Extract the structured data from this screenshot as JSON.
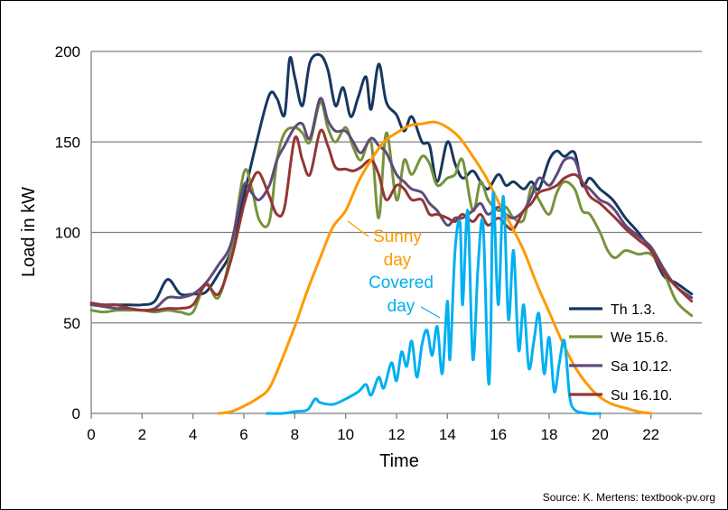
{
  "chart_data": {
    "type": "line",
    "xlabel": "Time",
    "ylabel": "Load in kW",
    "xlim": [
      0,
      24
    ],
    "ylim": [
      0,
      200
    ],
    "xticks": [
      "0",
      "2",
      "4",
      "6",
      "8",
      "10",
      "12",
      "14",
      "16",
      "18",
      "20",
      "22"
    ],
    "yticks": [
      "0",
      "50",
      "100",
      "150",
      "200"
    ],
    "grid": "horizontal",
    "legend_position": "right",
    "series": [
      {
        "name": "Th 1.3.",
        "color": "#17375e",
        "x": [
          0,
          0.5,
          1,
          1.5,
          2,
          2.5,
          3,
          3.5,
          4,
          4.5,
          5,
          5.5,
          6,
          6.5,
          7,
          7.3,
          7.6,
          7.8,
          8,
          8.3,
          8.6,
          9,
          9.3,
          9.6,
          9.9,
          10.2,
          10.5,
          10.8,
          11,
          11.3,
          11.6,
          12,
          12.3,
          12.6,
          13,
          13.3,
          13.6,
          14,
          14.3,
          14.6,
          15,
          15.3,
          15.6,
          16,
          16.3,
          16.6,
          17,
          17.3,
          17.6,
          18,
          18.3,
          18.6,
          19,
          19.3,
          19.6,
          20,
          20.5,
          21,
          21.5,
          22,
          22.5,
          23,
          23.6
        ],
        "y": [
          61,
          60,
          60,
          60,
          60,
          62,
          74,
          66,
          66,
          67,
          77,
          90,
          120,
          150,
          176,
          174,
          165,
          196,
          186,
          170,
          194,
          198,
          190,
          170,
          180,
          164,
          175,
          186,
          168,
          193,
          172,
          165,
          156,
          164,
          150,
          148,
          128,
          150,
          138,
          130,
          134,
          128,
          124,
          132,
          126,
          128,
          124,
          128,
          124,
          140,
          145,
          142,
          144,
          126,
          130,
          124,
          118,
          108,
          100,
          90,
          76,
          72,
          66
        ]
      },
      {
        "name": "We 15.6.",
        "color": "#77933c",
        "x": [
          0,
          0.5,
          1,
          1.5,
          2,
          2.5,
          3,
          3.5,
          4,
          4.5,
          5,
          5.5,
          6,
          6.3,
          6.6,
          7,
          7.3,
          7.6,
          8,
          8.3,
          8.6,
          9,
          9.3,
          9.6,
          10,
          10.3,
          10.6,
          11,
          11.3,
          11.6,
          12,
          12.3,
          12.6,
          13,
          13.3,
          13.6,
          14,
          14.3,
          14.6,
          15,
          15.3,
          15.6,
          16,
          16.3,
          16.6,
          17,
          17.3,
          17.6,
          18,
          18.3,
          18.6,
          19,
          19.3,
          19.6,
          20,
          20.3,
          20.6,
          21,
          21.5,
          22,
          22.5,
          23,
          23.6
        ],
        "y": [
          57,
          56,
          57,
          57,
          57,
          56,
          57,
          56,
          56,
          72,
          64,
          90,
          133,
          125,
          107,
          106,
          140,
          155,
          158,
          155,
          150,
          172,
          158,
          150,
          158,
          147,
          140,
          150,
          108,
          155,
          118,
          140,
          132,
          142,
          138,
          126,
          130,
          132,
          140,
          112,
          128,
          118,
          112,
          114,
          108,
          107,
          125,
          118,
          110,
          122,
          128,
          124,
          112,
          110,
          100,
          90,
          86,
          90,
          88,
          88,
          78,
          62,
          54
        ]
      },
      {
        "name": "Sa 10.12.",
        "color": "#604a7b",
        "x": [
          0,
          0.5,
          1,
          1.5,
          2,
          2.5,
          3,
          3.5,
          4,
          4.5,
          5,
          5.5,
          6,
          6.3,
          6.6,
          7,
          7.3,
          7.6,
          8,
          8.3,
          8.6,
          9,
          9.3,
          9.6,
          10,
          10.3,
          10.6,
          11,
          11.3,
          11.6,
          12,
          12.3,
          12.6,
          13,
          13.3,
          13.6,
          14,
          14.3,
          14.6,
          15,
          15.3,
          15.6,
          16,
          16.3,
          16.6,
          17,
          17.3,
          17.6,
          18,
          18.3,
          18.6,
          19,
          19.3,
          19.6,
          20,
          20.3,
          20.6,
          21,
          21.5,
          22,
          22.5,
          23,
          23.6
        ],
        "y": [
          60,
          59,
          58,
          58,
          57,
          58,
          64,
          64,
          66,
          72,
          82,
          94,
          126,
          122,
          118,
          126,
          140,
          148,
          158,
          160,
          152,
          174,
          162,
          156,
          156,
          150,
          144,
          152,
          148,
          144,
          132,
          128,
          124,
          122,
          116,
          112,
          104,
          108,
          108,
          112,
          116,
          110,
          114,
          110,
          108,
          112,
          120,
          130,
          126,
          132,
          140,
          140,
          128,
          124,
          118,
          116,
          112,
          104,
          98,
          92,
          80,
          70,
          64
        ]
      },
      {
        "name": "Su 16.10.",
        "color": "#943634",
        "x": [
          0,
          0.5,
          1,
          1.5,
          2,
          2.5,
          3,
          3.5,
          4,
          4.5,
          5,
          5.5,
          6,
          6.3,
          6.6,
          7,
          7.3,
          7.6,
          8,
          8.3,
          8.6,
          9,
          9.3,
          9.6,
          10,
          10.3,
          10.6,
          11,
          11.3,
          11.6,
          12,
          12.3,
          12.6,
          13,
          13.3,
          13.6,
          14,
          14.3,
          14.6,
          15,
          15.3,
          15.6,
          16,
          16.3,
          16.6,
          17,
          17.3,
          17.6,
          18,
          18.3,
          18.6,
          19,
          19.3,
          19.6,
          20,
          20.3,
          20.6,
          21,
          21.5,
          22,
          22.5,
          23,
          23.6
        ],
        "y": [
          61,
          60,
          60,
          58,
          57,
          57,
          58,
          58,
          60,
          71,
          66,
          85,
          115,
          128,
          133,
          120,
          110,
          114,
          152,
          140,
          132,
          156,
          148,
          136,
          135,
          134,
          136,
          140,
          132,
          118,
          126,
          124,
          118,
          118,
          110,
          110,
          108,
          106,
          110,
          106,
          110,
          104,
          108,
          104,
          102,
          112,
          116,
          122,
          124,
          126,
          130,
          132,
          128,
          120,
          116,
          112,
          108,
          102,
          96,
          90,
          78,
          70,
          62
        ]
      },
      {
        "name": "Sunny day",
        "color": "#ff9900",
        "x": [
          5,
          5.5,
          6,
          6.5,
          7,
          7.5,
          8,
          8.5,
          9,
          9.5,
          10,
          10.5,
          11,
          11.5,
          12,
          12.5,
          13,
          13.5,
          14,
          14.5,
          15,
          15.5,
          16,
          16.5,
          17,
          17.5,
          18,
          18.5,
          19,
          19.5,
          20,
          20.5,
          21,
          21.5,
          22
        ],
        "y": [
          0,
          1,
          4,
          8,
          14,
          30,
          48,
          68,
          86,
          103,
          112,
          128,
          140,
          150,
          155,
          159,
          160,
          161,
          158,
          152,
          142,
          131,
          117,
          104,
          90,
          72,
          56,
          40,
          26,
          16,
          9,
          5,
          3,
          1,
          0
        ]
      },
      {
        "name": "Covered day",
        "color": "#00b0f0",
        "x": [
          6.9,
          7.5,
          8,
          8.5,
          8.8,
          9,
          9.5,
          10,
          10.5,
          10.8,
          11,
          11.3,
          11.5,
          11.8,
          12,
          12.2,
          12.4,
          12.6,
          12.8,
          13,
          13.2,
          13.4,
          13.6,
          13.8,
          14,
          14.1,
          14.3,
          14.5,
          14.6,
          14.8,
          15,
          15.2,
          15.4,
          15.6,
          15.7,
          15.8,
          16,
          16.2,
          16.4,
          16.6,
          16.8,
          17,
          17.2,
          17.4,
          17.6,
          17.8,
          18,
          18.2,
          18.4,
          18.6,
          18.8,
          19,
          19.5,
          20
        ],
        "y": [
          0,
          0,
          1,
          2,
          8,
          6,
          5,
          8,
          12,
          16,
          10,
          20,
          14,
          28,
          18,
          34,
          26,
          40,
          20,
          38,
          46,
          32,
          48,
          22,
          62,
          30,
          90,
          105,
          60,
          112,
          30,
          80,
          105,
          20,
          40,
          122,
          60,
          120,
          52,
          90,
          35,
          60,
          25,
          40,
          55,
          22,
          42,
          12,
          28,
          40,
          10,
          2,
          0,
          0
        ]
      }
    ],
    "annotations": [
      {
        "text_lines": [
          "Sunny",
          "day"
        ],
        "color": "#ff9900"
      },
      {
        "text_lines": [
          "Covered",
          "day"
        ],
        "color": "#00b0f0"
      }
    ],
    "source": "Source: K. Mertens: textbook-pv.org"
  }
}
